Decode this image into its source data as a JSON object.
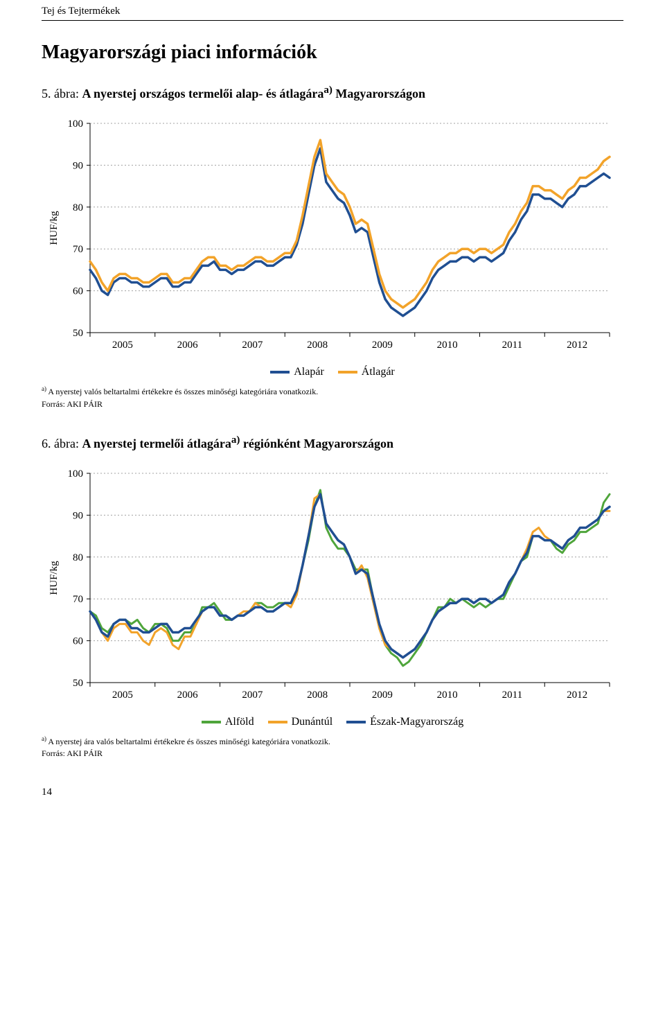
{
  "running_head": "Tej és Tejtermékek",
  "section_title": "Magyarországi piaci információk",
  "page_number": "14",
  "chart1": {
    "type": "line",
    "caption_prefix": "5. ábra: ",
    "caption_bold": "A nyerstej országos termelői alap- és átlagára",
    "caption_sup": "a)",
    "caption_suffix": " Magyarországon",
    "ylabel": "HUF/kg",
    "yticks": [
      50,
      60,
      70,
      80,
      90,
      100
    ],
    "ylim": [
      50,
      100
    ],
    "xticks": [
      "2005",
      "2006",
      "2007",
      "2008",
      "2009",
      "2010",
      "2011",
      "2012"
    ],
    "series": [
      {
        "name": "Alapár",
        "color": "#204f92",
        "width": 3.5,
        "data_name": "series-alapar",
        "values": [
          65,
          63,
          60,
          59,
          62,
          63,
          63,
          62,
          62,
          61,
          61,
          62,
          63,
          63,
          61,
          61,
          62,
          62,
          64,
          66,
          66,
          67,
          65,
          65,
          64,
          65,
          65,
          66,
          67,
          67,
          66,
          66,
          67,
          68,
          68,
          71,
          76,
          83,
          90,
          94,
          86,
          84,
          82,
          81,
          78,
          74,
          75,
          74,
          68,
          62,
          58,
          56,
          55,
          54,
          55,
          56,
          58,
          60,
          63,
          65,
          66,
          67,
          67,
          68,
          68,
          67,
          68,
          68,
          67,
          68,
          69,
          72,
          74,
          77,
          79,
          83,
          83,
          82,
          82,
          81,
          80,
          82,
          83,
          85,
          85,
          86,
          87,
          88,
          87
        ]
      },
      {
        "name": "Átlagár",
        "color": "#f2a32a",
        "width": 3.5,
        "data_name": "series-atlagar",
        "values": [
          67,
          65,
          62,
          60,
          63,
          64,
          64,
          63,
          63,
          62,
          62,
          63,
          64,
          64,
          62,
          62,
          63,
          63,
          65,
          67,
          68,
          68,
          66,
          66,
          65,
          66,
          66,
          67,
          68,
          68,
          67,
          67,
          68,
          69,
          69,
          72,
          78,
          85,
          92,
          96,
          88,
          86,
          84,
          83,
          80,
          76,
          77,
          76,
          70,
          64,
          60,
          58,
          57,
          56,
          57,
          58,
          60,
          62,
          65,
          67,
          68,
          69,
          69,
          70,
          70,
          69,
          70,
          70,
          69,
          70,
          71,
          74,
          76,
          79,
          81,
          85,
          85,
          84,
          84,
          83,
          82,
          84,
          85,
          87,
          87,
          88,
          89,
          91,
          92
        ]
      }
    ],
    "legend": [
      "Alapár",
      "Átlagár"
    ],
    "legend_colors": [
      "#204f92",
      "#f2a32a"
    ],
    "footnote_sup": "a)",
    "footnote": " A nyerstej valós beltartalmi értékekre és összes minőségi kategóriára vonatkozik.",
    "source": "Forrás: AKI PÁIR",
    "background_color": "#ffffff",
    "grid_color": "#a0a0a0"
  },
  "chart2": {
    "type": "line",
    "caption_prefix": "6. ábra: ",
    "caption_bold": "A nyerstej termelői átlagára",
    "caption_sup": "a)",
    "caption_suffix": " régiónként Magyarországon",
    "ylabel": "HUF/kg",
    "yticks": [
      50,
      60,
      70,
      80,
      90,
      100
    ],
    "ylim": [
      50,
      100
    ],
    "xticks": [
      "2005",
      "2006",
      "2007",
      "2008",
      "2009",
      "2010",
      "2011",
      "2012"
    ],
    "series": [
      {
        "name": "Alföld",
        "color": "#4fa53b",
        "width": 3.0,
        "data_name": "series-alfold",
        "values": [
          67,
          66,
          63,
          62,
          64,
          65,
          65,
          64,
          65,
          63,
          62,
          64,
          64,
          63,
          60,
          60,
          62,
          62,
          64,
          68,
          68,
          69,
          67,
          65,
          65,
          66,
          66,
          67,
          69,
          69,
          68,
          68,
          69,
          69,
          69,
          72,
          78,
          84,
          92,
          96,
          87,
          84,
          82,
          82,
          80,
          77,
          77,
          77,
          70,
          63,
          59,
          57,
          56,
          54,
          55,
          57,
          59,
          62,
          65,
          68,
          68,
          70,
          69,
          70,
          69,
          68,
          69,
          68,
          69,
          70,
          70,
          73,
          76,
          79,
          80,
          85,
          85,
          84,
          84,
          82,
          81,
          83,
          84,
          86,
          86,
          87,
          88,
          93,
          95
        ]
      },
      {
        "name": "Dunántúl",
        "color": "#f2a32a",
        "width": 3.0,
        "data_name": "series-dunantul",
        "values": [
          67,
          65,
          62,
          60,
          63,
          64,
          64,
          62,
          62,
          60,
          59,
          62,
          63,
          62,
          59,
          58,
          61,
          61,
          64,
          67,
          68,
          68,
          66,
          66,
          65,
          66,
          67,
          67,
          69,
          68,
          67,
          67,
          68,
          69,
          68,
          71,
          78,
          85,
          94,
          95,
          88,
          86,
          84,
          83,
          80,
          76,
          78,
          75,
          69,
          63,
          59,
          58,
          57,
          56,
          57,
          58,
          60,
          62,
          65,
          67,
          68,
          69,
          69,
          70,
          70,
          69,
          70,
          70,
          69,
          70,
          71,
          74,
          76,
          79,
          82,
          86,
          87,
          85,
          84,
          83,
          82,
          84,
          85,
          87,
          87,
          88,
          89,
          91,
          91
        ]
      },
      {
        "name": "Észak-Magyarország",
        "color": "#204f92",
        "width": 3.5,
        "data_name": "series-eszak",
        "values": [
          67,
          65,
          62,
          61,
          64,
          65,
          65,
          63,
          63,
          62,
          62,
          63,
          64,
          64,
          62,
          62,
          63,
          63,
          65,
          67,
          68,
          68,
          66,
          66,
          65,
          66,
          66,
          67,
          68,
          68,
          67,
          67,
          68,
          69,
          69,
          72,
          78,
          85,
          92,
          95,
          88,
          86,
          84,
          83,
          80,
          76,
          77,
          76,
          70,
          64,
          60,
          58,
          57,
          56,
          57,
          58,
          60,
          62,
          65,
          67,
          68,
          69,
          69,
          70,
          70,
          69,
          70,
          70,
          69,
          70,
          71,
          74,
          76,
          79,
          81,
          85,
          85,
          84,
          84,
          83,
          82,
          84,
          85,
          87,
          87,
          88,
          89,
          91,
          92
        ]
      }
    ],
    "legend": [
      "Alföld",
      "Dunántúl",
      "Észak-Magyarország"
    ],
    "legend_colors": [
      "#4fa53b",
      "#f2a32a",
      "#204f92"
    ],
    "footnote_sup": "a)",
    "footnote": " A nyerstej ára valós beltartalmi értékekre és összes minőségi kategóriára vonatkozik.",
    "source": "Forrás: AKI PÁIR",
    "background_color": "#ffffff",
    "grid_color": "#a0a0a0"
  }
}
